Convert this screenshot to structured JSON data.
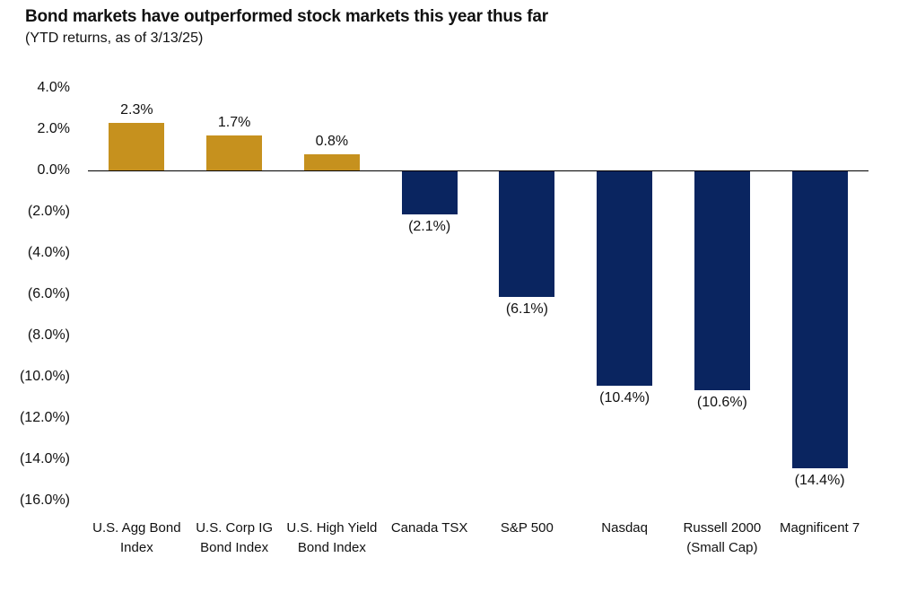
{
  "header": {
    "title": "Bond markets have outperformed stock markets this year thus far",
    "subtitle": "(YTD returns, as of 3/13/25)"
  },
  "chart_data": {
    "type": "bar",
    "title": "Bond markets have outperformed stock markets this year thus far",
    "subtitle": "(YTD returns, as of 3/13/25)",
    "categories": [
      "U.S. Agg Bond Index",
      "U.S. Corp IG Bond Index",
      "U.S. High Yield Bond Index",
      "Canada TSX",
      "S&P 500",
      "Nasdaq",
      "Russell 2000 (Small Cap)",
      "Magnificent 7"
    ],
    "values": [
      2.3,
      1.7,
      0.8,
      -2.1,
      -6.1,
      -10.4,
      -10.6,
      -14.4
    ],
    "value_labels": [
      "2.3%",
      "1.7%",
      "0.8%",
      "(2.1%)",
      "(6.1%)",
      "(10.4%)",
      "(10.6%)",
      "(14.4%)"
    ],
    "y_axis": {
      "tick_values": [
        4,
        2,
        0,
        -2,
        -4,
        -6,
        -8,
        -10,
        -12,
        -14,
        -16
      ],
      "tick_labels": [
        "4.0%",
        "2.0%",
        "0.0%",
        "(2.0%)",
        "(4.0%)",
        "(6.0%)",
        "(8.0%)",
        "(10.0%)",
        "(12.0%)",
        "(14.0%)",
        "(16.0%)"
      ],
      "ylim": [
        -16,
        4
      ]
    },
    "colors": {
      "positive_bar": "#C6911E",
      "negative_bar": "#0A2560",
      "axis_line": "#000000",
      "text": "#111111"
    },
    "grid": false,
    "legend": false,
    "xlabel": "",
    "ylabel": ""
  }
}
